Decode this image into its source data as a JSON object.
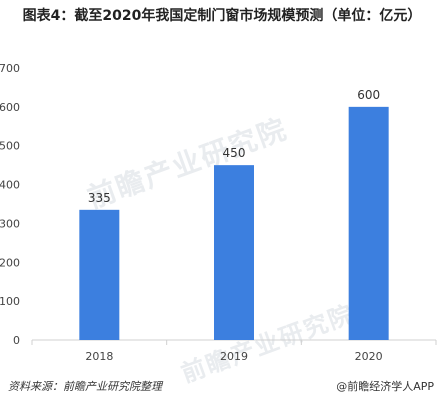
{
  "title": "图表4：截至2020年我国定制门窗市场规模预测（单位：亿元）",
  "chart_data": {
    "type": "bar",
    "categories": [
      "2018",
      "2019",
      "2020"
    ],
    "values": [
      335,
      450,
      600
    ],
    "value_labels": [
      "335",
      "450",
      "600"
    ],
    "ylim": [
      0,
      700
    ],
    "yticks": [
      "0",
      "100",
      "200",
      "300",
      "400",
      "500",
      "600",
      "700"
    ],
    "bar_color": "#3c7fdf",
    "grid": false,
    "legend": "none"
  },
  "footer": {
    "source": "资料来源：前瞻产业研究院整理",
    "brand": "@前瞻经济学人APP"
  },
  "watermark": "前瞻产业研究院"
}
